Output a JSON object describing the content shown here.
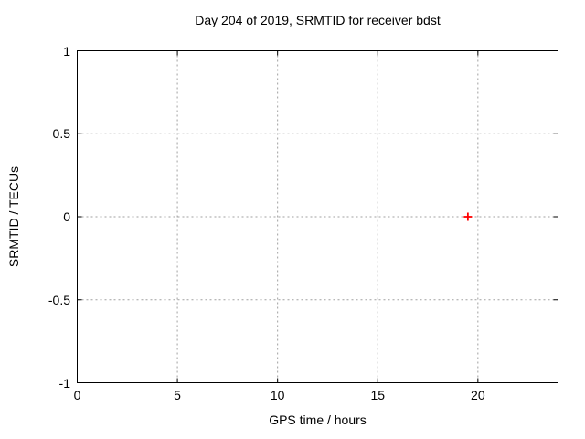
{
  "chart_data": {
    "type": "scatter",
    "title": "Day 204 of 2019, SRMTID for receiver bdst",
    "xlabel": "GPS time / hours",
    "ylabel": "SRMTID / TECUs",
    "xlim": [
      0,
      24
    ],
    "ylim": [
      -1,
      1
    ],
    "xticks": {
      "values": [
        0,
        5,
        10,
        15,
        20
      ],
      "labels": [
        "0",
        "5",
        "10",
        "15",
        "20"
      ]
    },
    "yticks": {
      "values": [
        -1,
        -0.5,
        0,
        0.5,
        1
      ],
      "labels": [
        "-1",
        "-0.5",
        "0",
        "0.5",
        "1"
      ]
    },
    "grid": true,
    "legend": "none",
    "series": [
      {
        "name": "SRMTID",
        "type": "points",
        "marker": "plus",
        "color": "#ff0000",
        "points": [
          {
            "x": 19.5,
            "y": 0
          }
        ]
      }
    ],
    "colors": {
      "background": "#ffffff",
      "axis": "#000000",
      "grid": "#a0a0a0",
      "text": "#000000"
    }
  }
}
